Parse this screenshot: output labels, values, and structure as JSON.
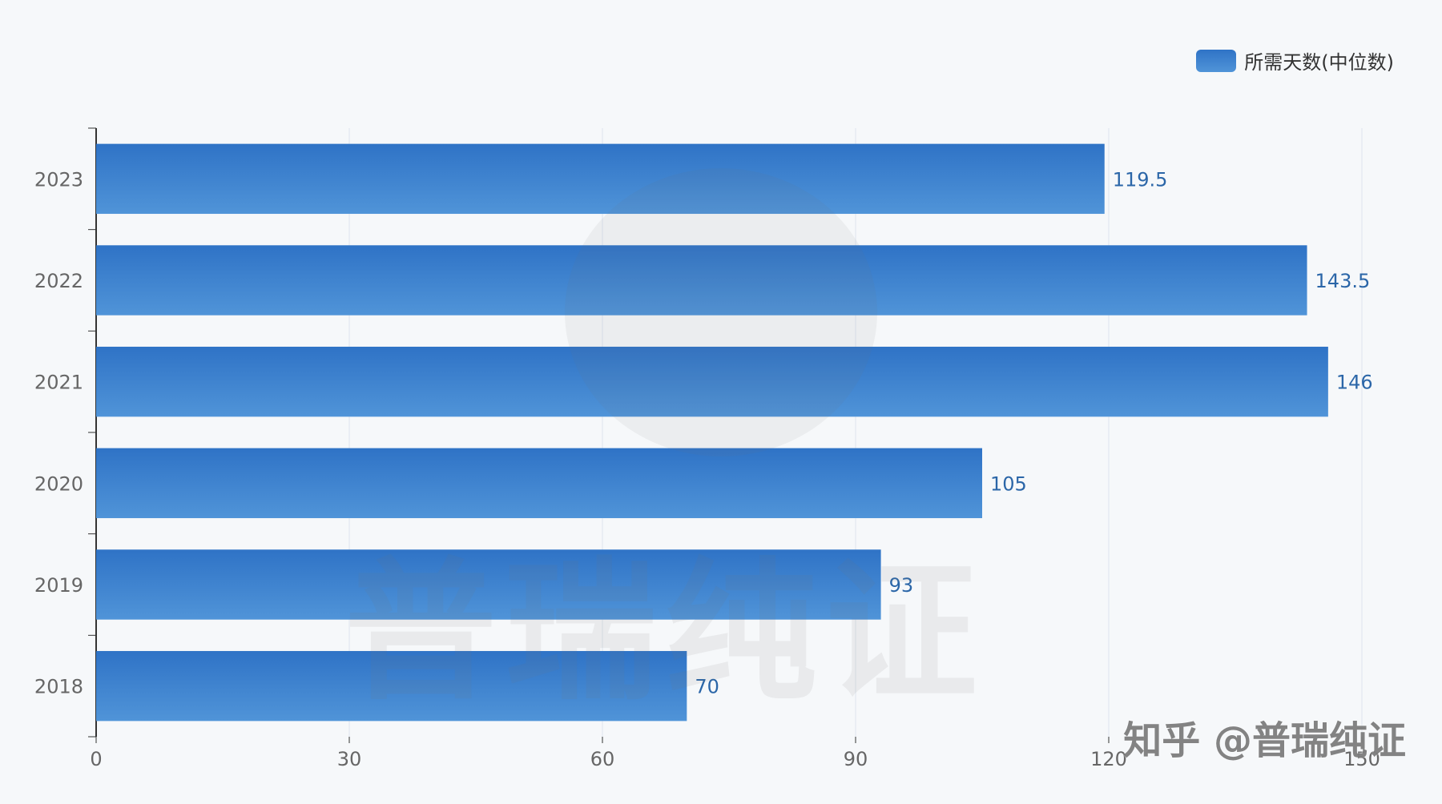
{
  "chart_data": {
    "type": "bar",
    "orientation": "horizontal",
    "categories": [
      "2023",
      "2022",
      "2021",
      "2020",
      "2019",
      "2018"
    ],
    "series": [
      {
        "name": "所需天数(中位数)",
        "values": [
          119.5,
          143.5,
          146,
          105,
          93,
          70
        ]
      }
    ],
    "value_labels": [
      "119.5",
      "143.5",
      "146",
      "105",
      "93",
      "70"
    ],
    "xlim": [
      0,
      150
    ],
    "x_ticks": [
      0,
      30,
      60,
      90,
      120,
      150
    ],
    "x_tick_labels": [
      "0",
      "30",
      "60",
      "90",
      "120",
      "150"
    ],
    "grid": true,
    "legend_position": "top-right",
    "colors": {
      "bar_top": "#2f73c6",
      "bar_bottom": "#5094d8",
      "label": "#2b66a8",
      "axis": "#333333",
      "grid": "#dfe5ee",
      "tick_text": "#666666"
    }
  },
  "watermark": {
    "text": "普瑞纯证",
    "footer": "知乎 @普瑞纯证"
  }
}
